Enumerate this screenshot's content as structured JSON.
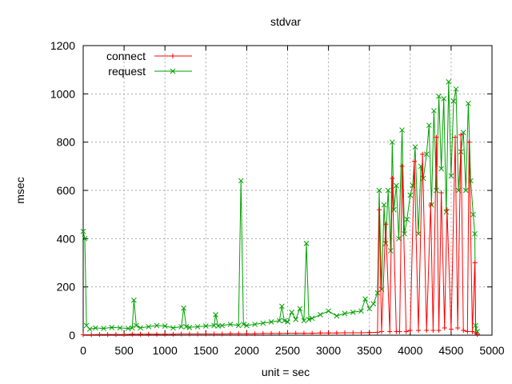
{
  "chart_data": {
    "type": "line",
    "title": "stdvar",
    "xlabel": "unit = sec",
    "ylabel": "msec",
    "xlim": [
      0,
      5000
    ],
    "ylim": [
      0,
      1200
    ],
    "x_ticks": [
      0,
      500,
      1000,
      1500,
      2000,
      2500,
      3000,
      3500,
      4000,
      4500,
      5000
    ],
    "y_ticks": [
      0,
      200,
      400,
      600,
      800,
      1000,
      1200
    ],
    "x_tick_labels": [
      "0",
      "500",
      "1000",
      "1500",
      "2000",
      "2500",
      "3000",
      "3500",
      "4000",
      "4500",
      "5000"
    ],
    "y_tick_labels": [
      "0",
      "200",
      "400",
      "600",
      "800",
      "1000",
      "1200"
    ],
    "grid": true,
    "legend_position": "top-left",
    "series": [
      {
        "name": "connect",
        "color": "#ff0000",
        "marker": "plus",
        "x": [
          0,
          100,
          200,
          300,
          400,
          500,
          600,
          700,
          800,
          900,
          1000,
          1100,
          1200,
          1300,
          1400,
          1500,
          1600,
          1700,
          1800,
          1900,
          2000,
          2100,
          2200,
          2300,
          2400,
          2500,
          2600,
          2700,
          2800,
          2900,
          3000,
          3100,
          3200,
          3300,
          3400,
          3500,
          3600,
          3620,
          3650,
          3700,
          3750,
          3780,
          3830,
          3870,
          3900,
          3950,
          4000,
          4050,
          4100,
          4150,
          4200,
          4250,
          4280,
          4320,
          4350,
          4380,
          4420,
          4450,
          4500,
          4550,
          4580,
          4620,
          4650,
          4700,
          4720,
          4760,
          4790,
          4800,
          4820
        ],
        "y": [
          2,
          2,
          3,
          3,
          3,
          3,
          4,
          4,
          4,
          4,
          4,
          4,
          5,
          5,
          5,
          5,
          5,
          5,
          6,
          6,
          6,
          6,
          7,
          7,
          7,
          8,
          8,
          8,
          8,
          9,
          9,
          9,
          10,
          10,
          10,
          11,
          12,
          520,
          15,
          460,
          15,
          650,
          15,
          15,
          700,
          15,
          20,
          720,
          20,
          750,
          20,
          540,
          20,
          820,
          20,
          590,
          30,
          520,
          25,
          820,
          30,
          830,
          20,
          15,
          800,
          15,
          300,
          10,
          3
        ]
      },
      {
        "name": "request",
        "color": "#00a000",
        "marker": "x",
        "x": [
          0,
          20,
          40,
          80,
          150,
          250,
          350,
          450,
          550,
          600,
          620,
          650,
          700,
          800,
          900,
          1000,
          1100,
          1200,
          1230,
          1260,
          1300,
          1400,
          1500,
          1600,
          1620,
          1650,
          1700,
          1800,
          1900,
          1930,
          1960,
          2000,
          2100,
          2200,
          2300,
          2400,
          2430,
          2460,
          2500,
          2550,
          2600,
          2650,
          2700,
          2730,
          2760,
          2800,
          2900,
          3000,
          3100,
          3200,
          3300,
          3400,
          3450,
          3500,
          3550,
          3600,
          3620,
          3650,
          3680,
          3700,
          3730,
          3760,
          3780,
          3800,
          3830,
          3860,
          3900,
          3930,
          3960,
          4000,
          4030,
          4060,
          4100,
          4130,
          4160,
          4200,
          4230,
          4260,
          4290,
          4320,
          4350,
          4380,
          4410,
          4440,
          4470,
          4500,
          4530,
          4560,
          4590,
          4620,
          4650,
          4680,
          4710,
          4740,
          4770,
          4790,
          4800,
          4820
        ],
        "y": [
          430,
          400,
          40,
          25,
          30,
          28,
          32,
          30,
          28,
          30,
          145,
          40,
          30,
          35,
          40,
          38,
          30,
          35,
          112,
          35,
          32,
          35,
          38,
          40,
          85,
          38,
          40,
          45,
          40,
          640,
          45,
          40,
          45,
          50,
          55,
          60,
          120,
          60,
          55,
          95,
          65,
          110,
          60,
          380,
          65,
          70,
          85,
          100,
          80,
          90,
          95,
          100,
          150,
          110,
          130,
          175,
          600,
          190,
          540,
          380,
          600,
          350,
          800,
          520,
          620,
          400,
          850,
          420,
          480,
          580,
          620,
          780,
          420,
          700,
          650,
          750,
          870,
          540,
          930,
          600,
          990,
          690,
          980,
          510,
          1050,
          660,
          970,
          1020,
          600,
          760,
          840,
          600,
          960,
          640,
          500,
          420,
          40,
          15
        ]
      }
    ]
  }
}
